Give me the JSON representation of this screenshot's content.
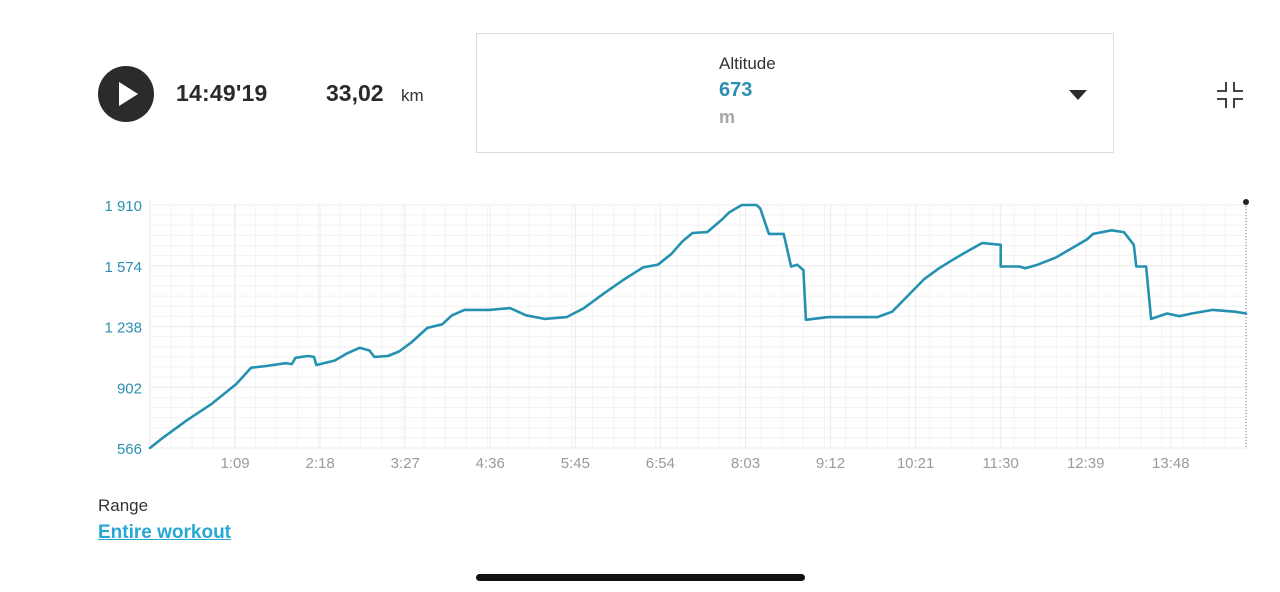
{
  "header": {
    "duration": "14:49'19",
    "distance": "33,02",
    "distance_unit": "km",
    "play_icon": "play-icon",
    "collapse_icon": "collapse-fullscreen-icon"
  },
  "metric_selector": {
    "label": "Altitude",
    "value": "673",
    "unit": "m",
    "dropdown_icon": "caret-down-icon"
  },
  "colors": {
    "line": "#2591b0",
    "axis_text": "#2a8fb0",
    "time_text": "#9a9a9a",
    "grid": "#ececec",
    "link": "#29a7d3"
  },
  "chart_data": {
    "type": "line",
    "xlabel": "",
    "ylabel": "",
    "y_ticks": [
      "1 910",
      "1 574",
      "1 238",
      "902",
      "566"
    ],
    "y_tick_values": [
      1910,
      1574,
      1238,
      902,
      566
    ],
    "x_ticks": [
      "1:09",
      "2:18",
      "3:27",
      "4:36",
      "5:45",
      "6:54",
      "8:03",
      "9:12",
      "10:21",
      "11:30",
      "12:39",
      "13:48"
    ],
    "x_unit": "minutes",
    "x_tick_values": [
      69,
      138,
      207,
      276,
      345,
      414,
      483,
      552,
      621,
      690,
      759,
      828
    ],
    "xlim": [
      0,
      889
    ],
    "ylim": [
      566,
      1910
    ],
    "grid": true,
    "series": [
      {
        "values": [
          [
            0,
            566
          ],
          [
            10,
            620
          ],
          [
            30,
            720
          ],
          [
            50,
            810
          ],
          [
            70,
            920
          ],
          [
            82,
            1010
          ],
          [
            95,
            1020
          ],
          [
            110,
            1035
          ],
          [
            115,
            1030
          ],
          [
            118,
            1065
          ],
          [
            128,
            1075
          ],
          [
            133,
            1070
          ],
          [
            135,
            1025
          ],
          [
            150,
            1050
          ],
          [
            160,
            1090
          ],
          [
            170,
            1120
          ],
          [
            178,
            1105
          ],
          [
            182,
            1070
          ],
          [
            193,
            1075
          ],
          [
            202,
            1100
          ],
          [
            212,
            1150
          ],
          [
            225,
            1230
          ],
          [
            237,
            1250
          ],
          [
            245,
            1300
          ],
          [
            255,
            1330
          ],
          [
            275,
            1330
          ],
          [
            292,
            1340
          ],
          [
            305,
            1300
          ],
          [
            320,
            1280
          ],
          [
            338,
            1290
          ],
          [
            352,
            1340
          ],
          [
            368,
            1420
          ],
          [
            385,
            1500
          ],
          [
            400,
            1565
          ],
          [
            412,
            1580
          ],
          [
            423,
            1640
          ],
          [
            432,
            1710
          ],
          [
            440,
            1755
          ],
          [
            452,
            1760
          ],
          [
            464,
            1830
          ],
          [
            470,
            1870
          ],
          [
            480,
            1910
          ],
          [
            492,
            1910
          ],
          [
            495,
            1890
          ],
          [
            502,
            1750
          ],
          [
            514,
            1750
          ],
          [
            520,
            1570
          ],
          [
            525,
            1580
          ],
          [
            530,
            1550
          ],
          [
            532,
            1275
          ],
          [
            550,
            1290
          ],
          [
            575,
            1290
          ],
          [
            590,
            1290
          ],
          [
            602,
            1320
          ],
          [
            615,
            1410
          ],
          [
            628,
            1500
          ],
          [
            640,
            1560
          ],
          [
            652,
            1610
          ],
          [
            662,
            1650
          ],
          [
            675,
            1700
          ],
          [
            690,
            1690
          ],
          [
            690,
            1570
          ],
          [
            705,
            1570
          ],
          [
            710,
            1560
          ],
          [
            720,
            1580
          ],
          [
            735,
            1620
          ],
          [
            750,
            1680
          ],
          [
            760,
            1720
          ],
          [
            765,
            1750
          ],
          [
            780,
            1770
          ],
          [
            790,
            1760
          ],
          [
            798,
            1690
          ],
          [
            800,
            1570
          ],
          [
            808,
            1570
          ],
          [
            812,
            1280
          ],
          [
            825,
            1310
          ],
          [
            835,
            1295
          ],
          [
            845,
            1310
          ],
          [
            862,
            1330
          ],
          [
            880,
            1320
          ],
          [
            889,
            1310
          ]
        ]
      }
    ]
  },
  "range": {
    "label": "Range",
    "value": "Entire workout"
  }
}
